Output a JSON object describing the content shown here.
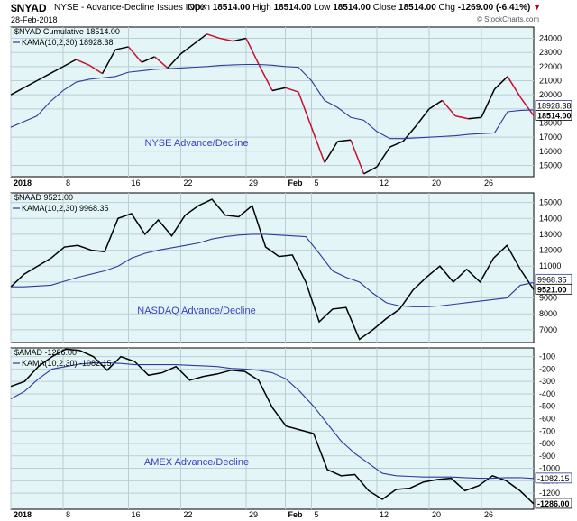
{
  "header": {
    "symbol": "$NYAD",
    "name": "NYSE - Advance-Decline Issues INDX",
    "date": "28-Feb-2018",
    "open_label": "Open",
    "open": "18514.00",
    "high_label": "High",
    "high": "18514.00",
    "low_label": "Low",
    "low": "18514.00",
    "close_label": "Close",
    "close": "18514.00",
    "chg_label": "Chg",
    "chg": "-1269.00 (-6.41%)",
    "arrow": "▼",
    "credit": "© StockCharts.com"
  },
  "x_axis": {
    "ticks": [
      {
        "label": "2018",
        "index": 0,
        "bold": true
      },
      {
        "label": "8",
        "index": 4
      },
      {
        "label": "16",
        "index": 9
      },
      {
        "label": "22",
        "index": 13
      },
      {
        "label": "29",
        "index": 18
      },
      {
        "label": "Feb",
        "index": 21,
        "bold": true
      },
      {
        "label": "5",
        "index": 23
      },
      {
        "label": "12",
        "index": 28
      },
      {
        "label": "20",
        "index": 32
      },
      {
        "label": "26",
        "index": 36
      }
    ]
  },
  "chart_data": [
    {
      "type": "line",
      "title": "NYSE Advance/Decline",
      "legend": [
        "$NYAD Cumulative 18514.00",
        "KAMA(10,2,30) 18928.38"
      ],
      "yticks": [
        15000,
        16000,
        17000,
        18000,
        19000,
        20000,
        21000,
        22000,
        23000,
        24000
      ],
      "ylim": [
        14200,
        24800
      ],
      "last_labels": [
        "18928.38",
        "18514.00"
      ],
      "series": [
        {
          "name": "$NYAD Cumulative",
          "color_up": "#000000",
          "color_down": "#c8102e",
          "values": [
            20000,
            20500,
            21000,
            21500,
            22000,
            22500,
            22100,
            21500,
            23200,
            23400,
            22300,
            22700,
            21900,
            22900,
            23600,
            24300,
            24000,
            23800,
            24000,
            22100,
            20300,
            20500,
            20200,
            17700,
            15200,
            16700,
            16800,
            14400,
            14900,
            16300,
            16700,
            17800,
            19000,
            19600,
            18500,
            18300,
            18400,
            20400,
            21300,
            19800,
            18514
          ]
        },
        {
          "name": "KAMA(10,2,30)",
          "color": "#2e3a9c",
          "values": [
            17700,
            18100,
            18500,
            19500,
            20300,
            20900,
            21100,
            21200,
            21300,
            21600,
            21700,
            21800,
            21850,
            21900,
            21950,
            22000,
            22080,
            22120,
            22150,
            22150,
            22100,
            22000,
            21950,
            21000,
            19600,
            19100,
            18400,
            18200,
            17400,
            16900,
            16900,
            16950,
            17000,
            17050,
            17100,
            17200,
            17250,
            17300,
            18800,
            18900,
            18928
          ]
        }
      ]
    },
    {
      "type": "line",
      "title": "NASDAQ Advance/Decline",
      "legend": [
        "$NAAD 9521.00",
        "KAMA(10,2,30) 9968.35"
      ],
      "yticks": [
        7000,
        8000,
        9000,
        10000,
        11000,
        12000,
        13000,
        14000,
        15000
      ],
      "ylim": [
        6200,
        15600
      ],
      "last_labels": [
        "9968.35",
        "9521.00"
      ],
      "series": [
        {
          "name": "$NAAD",
          "color": "#000000",
          "values": [
            9700,
            10500,
            11000,
            11500,
            12200,
            12300,
            12000,
            11900,
            14000,
            14300,
            13000,
            13900,
            12900,
            14200,
            14800,
            15200,
            14200,
            14100,
            14800,
            12200,
            11600,
            11700,
            10000,
            7500,
            8300,
            8400,
            6400,
            7000,
            7700,
            8300,
            9500,
            10300,
            11000,
            10000,
            10800,
            10000,
            11500,
            12300,
            10800,
            9521
          ]
        },
        {
          "name": "KAMA(10,2,30)",
          "color": "#2e3a9c",
          "values": [
            9700,
            9700,
            9750,
            9800,
            10050,
            10300,
            10500,
            10700,
            11000,
            11500,
            11800,
            12000,
            12150,
            12300,
            12450,
            12700,
            12850,
            12950,
            13000,
            13000,
            12950,
            12900,
            12850,
            11800,
            10700,
            10300,
            10000,
            9300,
            8700,
            8500,
            8450,
            8450,
            8500,
            8600,
            8700,
            8800,
            8900,
            9000,
            9800,
            9968
          ]
        }
      ]
    },
    {
      "type": "line",
      "title": "AMEX Advance/Decline",
      "legend": [
        "$AMAD -1286.00",
        "KAMA(10,2,30) -1082.15"
      ],
      "yticks": [
        -100,
        -200,
        -300,
        -400,
        -500,
        -600,
        -700,
        -800,
        -900,
        -1000,
        -1100,
        -1200
      ],
      "ylim": [
        -1330,
        -30
      ],
      "last_labels": [
        "-1082.15",
        "-1286.00"
      ],
      "series": [
        {
          "name": "$AMAD",
          "color": "#000000",
          "values": [
            -340,
            -300,
            -180,
            -100,
            -40,
            -50,
            -100,
            -210,
            -100,
            -140,
            -250,
            -230,
            -180,
            -290,
            -260,
            -240,
            -210,
            -220,
            -290,
            -510,
            -660,
            -690,
            -720,
            -1010,
            -1060,
            -1050,
            -1180,
            -1250,
            -1170,
            -1160,
            -1110,
            -1090,
            -1080,
            -1180,
            -1140,
            -1060,
            -1100,
            -1180,
            -1286
          ]
        },
        {
          "name": "KAMA(10,2,30)",
          "color": "#2e3a9c",
          "values": [
            -440,
            -380,
            -280,
            -200,
            -180,
            -160,
            -150,
            -150,
            -155,
            -165,
            -165,
            -165,
            -165,
            -170,
            -175,
            -180,
            -195,
            -200,
            -210,
            -230,
            -280,
            -380,
            -500,
            -640,
            -780,
            -880,
            -960,
            -1040,
            -1060,
            -1065,
            -1070,
            -1070,
            -1070,
            -1075,
            -1080,
            -1080,
            -1075,
            -1075,
            -1082
          ]
        }
      ]
    }
  ]
}
